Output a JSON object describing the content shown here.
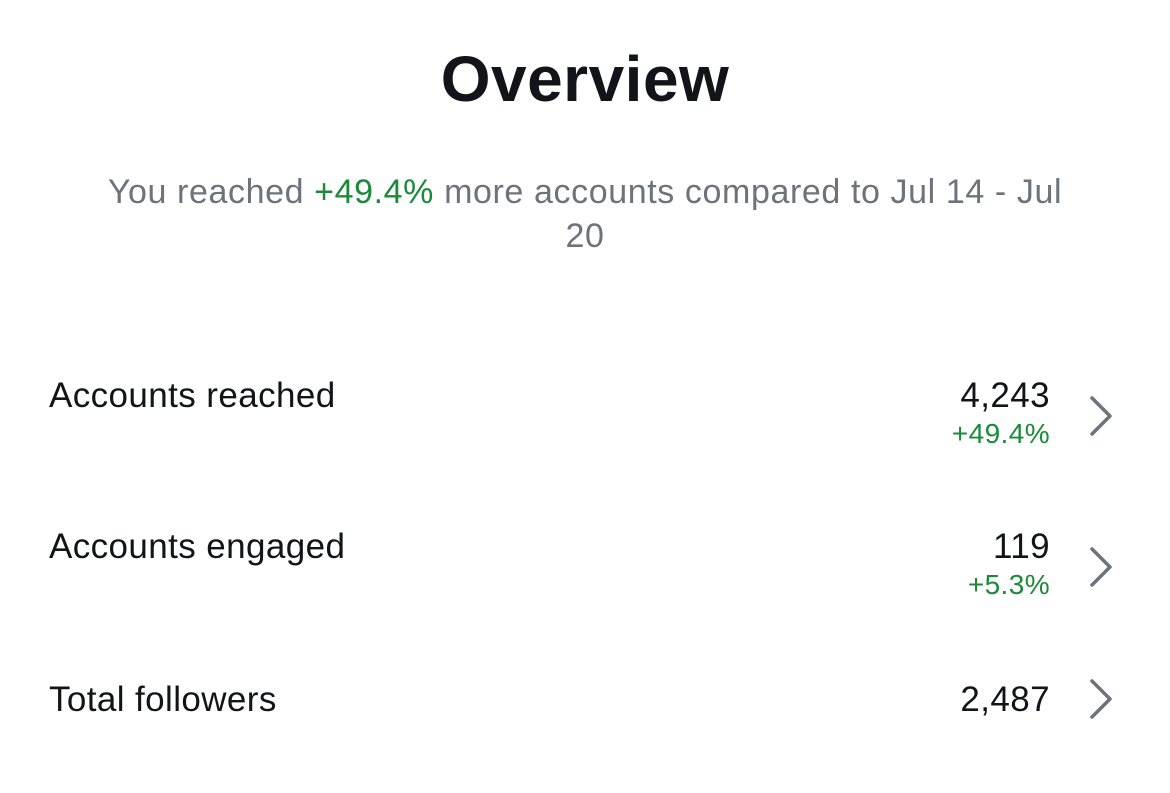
{
  "header": {
    "title": "Overview"
  },
  "summary": {
    "prefix": "You reached ",
    "change": "+49.4%",
    "suffix": " more accounts compared to Jul 14 - Jul 20"
  },
  "metrics": [
    {
      "label": "Accounts reached",
      "value": "4,243",
      "change": "+49.4%"
    },
    {
      "label": "Accounts engaged",
      "value": "119",
      "change": "+5.3%"
    },
    {
      "label": "Total followers",
      "value": "2,487",
      "change": ""
    }
  ],
  "icons": {
    "row_arrow": "chevron-right-icon"
  },
  "colors": {
    "positive": "#1c8a3a",
    "muted_text": "#6d737b",
    "primary_text": "#111418",
    "chevron": "#6d737b"
  }
}
